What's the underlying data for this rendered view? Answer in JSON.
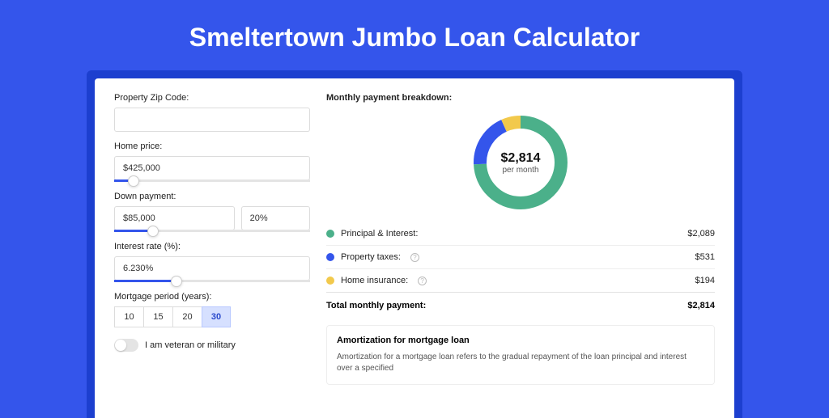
{
  "page_title": "Smeltertown Jumbo Loan Calculator",
  "colors": {
    "bg": "#3455eb",
    "shadow": "#1c3fcf",
    "accent": "#3455eb",
    "principal": "#4bb08a",
    "taxes": "#3455eb",
    "insurance": "#f2c94c"
  },
  "form": {
    "zip": {
      "label": "Property Zip Code:",
      "value": ""
    },
    "home_price": {
      "label": "Home price:",
      "value": "$425,000",
      "slider_pct": 10
    },
    "down_payment": {
      "label": "Down payment:",
      "value": "$85,000",
      "pct_value": "20%",
      "slider_pct": 20
    },
    "interest_rate": {
      "label": "Interest rate (%):",
      "value": "6.230%",
      "slider_pct": 32
    },
    "mortgage_period": {
      "label": "Mortgage period (years):",
      "options": [
        "10",
        "15",
        "20",
        "30"
      ],
      "selected": "30"
    },
    "veteran": {
      "label": "I am veteran or military",
      "checked": false
    }
  },
  "breakdown": {
    "title": "Monthly payment breakdown:",
    "donut": {
      "amount": "$2,814",
      "sub": "per month",
      "stroke_width": 16,
      "segments": [
        {
          "key": "principal",
          "value": 2089,
          "color": "#4bb08a"
        },
        {
          "key": "taxes",
          "value": 531,
          "color": "#3455eb"
        },
        {
          "key": "insurance",
          "value": 194,
          "color": "#f2c94c"
        }
      ],
      "total": 2814
    },
    "items": [
      {
        "label": "Principal & Interest:",
        "amount": "$2,089",
        "color": "#4bb08a",
        "info": false
      },
      {
        "label": "Property taxes:",
        "amount": "$531",
        "color": "#3455eb",
        "info": true
      },
      {
        "label": "Home insurance:",
        "amount": "$194",
        "color": "#f2c94c",
        "info": true
      }
    ],
    "total": {
      "label": "Total monthly payment:",
      "amount": "$2,814"
    }
  },
  "amortization": {
    "title": "Amortization for mortgage loan",
    "text": "Amortization for a mortgage loan refers to the gradual repayment of the loan principal and interest over a specified"
  }
}
